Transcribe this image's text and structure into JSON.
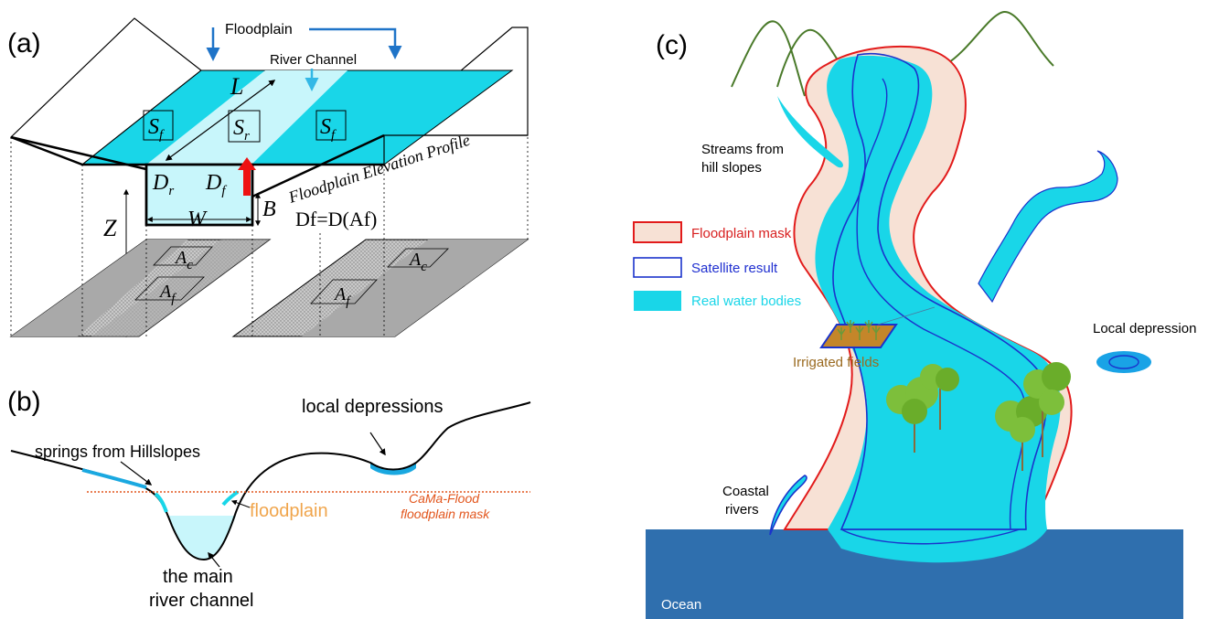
{
  "panel_a": {
    "label": "(a)",
    "floodplain": "Floodplain",
    "river_channel": "River Channel",
    "L": "L",
    "Sf_left": "Sf",
    "Sr": "Sr",
    "Sf_right": "Sf",
    "Dr": "Dr",
    "Df": "Df",
    "W": "W",
    "B": "B",
    "Z": "Z",
    "Ac_left": "Ac",
    "Af_left": "Af",
    "Ac_right": "Ac",
    "Af_right": "Af",
    "profile_label": "Floodplain Elevation Profile",
    "equation": "Df=D(Af)"
  },
  "panel_b": {
    "label": "(b)",
    "springs": "springs from Hillslopes",
    "local_depressions": "local depressions",
    "floodplain": "floodplain",
    "cama_line1": "CaMa-Flood",
    "cama_line2": "floodplain mask",
    "main_channel_line1": "the main",
    "main_channel_line2": "river channel"
  },
  "panel_c": {
    "label": "(c)",
    "streams_line1": "Streams from",
    "streams_line2": "hill slopes",
    "legend": [
      {
        "label": "Floodplain mask",
        "color": "#d81f1f"
      },
      {
        "label": "Satellite result",
        "color": "#1f2fd0"
      },
      {
        "label": "Real water bodies",
        "color": "#19d6e8"
      }
    ],
    "irrigated": "Irrigated fields",
    "local_depression": "Local depression",
    "coastal_line1": "Coastal",
    "coastal_line2": "rivers",
    "ocean": "Ocean"
  },
  "colors": {
    "water_cyan": "#19d6e8",
    "channel_light": "#c8f6fb",
    "floodplain_fill": "#f7e1d5",
    "floodplain_edge": "#e21b1b",
    "satellite_edge": "#1a33cc",
    "ocean": "#2f6fae",
    "mountain": "#4a7a2a",
    "arrow_blue": "#1f74c8",
    "cama_dotted": "#e2551c",
    "floodplain_text": "#f0a54c"
  }
}
